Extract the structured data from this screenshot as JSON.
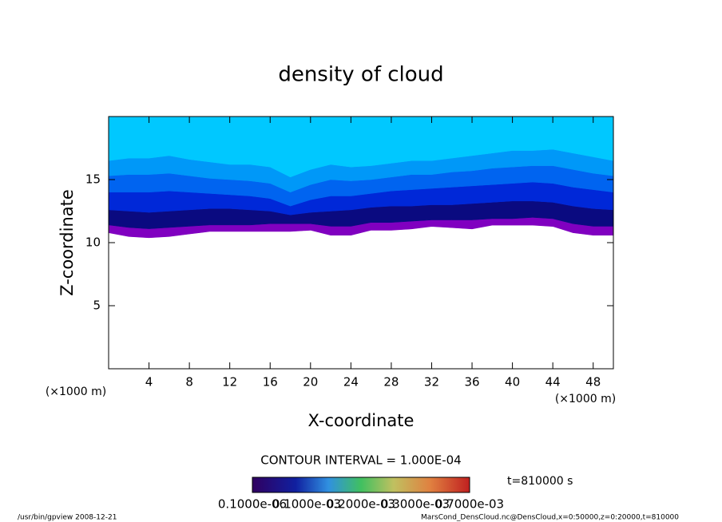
{
  "chart_data": {
    "type": "contour",
    "title": "density of cloud",
    "x_label": "X-coordinate",
    "y_label": "Z-coordinate",
    "x_unit": "(×1000 m)",
    "y_unit": "(×1000 m)",
    "xlim": [
      0,
      50
    ],
    "ylim": [
      0,
      20
    ],
    "xticks": [
      4,
      8,
      12,
      16,
      20,
      24,
      28,
      32,
      36,
      40,
      44,
      48
    ],
    "yticks": [
      5,
      10,
      15
    ],
    "x": [
      0,
      2,
      4,
      6,
      8,
      10,
      12,
      14,
      16,
      18,
      20,
      22,
      24,
      26,
      28,
      30,
      32,
      34,
      36,
      38,
      40,
      42,
      44,
      46,
      48,
      50
    ],
    "base": [
      10.8,
      10.5,
      10.4,
      10.5,
      10.7,
      10.9,
      10.9,
      10.9,
      10.9,
      10.9,
      11.0,
      10.6,
      10.6,
      11.0,
      11.0,
      11.1,
      11.3,
      11.2,
      11.1,
      11.4,
      11.4,
      11.4,
      11.3,
      10.8,
      10.6,
      10.6
    ],
    "bands": [
      {
        "color": "#8000c0",
        "values": [
          11.4,
          11.2,
          11.1,
          11.2,
          11.3,
          11.4,
          11.4,
          11.4,
          11.5,
          11.5,
          11.5,
          11.3,
          11.3,
          11.6,
          11.6,
          11.7,
          11.8,
          11.8,
          11.8,
          11.9,
          11.9,
          12.0,
          11.9,
          11.5,
          11.3,
          11.3
        ]
      },
      {
        "color": "#0a0a80",
        "values": [
          12.6,
          12.5,
          12.4,
          12.5,
          12.6,
          12.7,
          12.7,
          12.6,
          12.5,
          12.2,
          12.4,
          12.5,
          12.6,
          12.8,
          12.9,
          12.9,
          13.0,
          13.0,
          13.1,
          13.2,
          13.3,
          13.3,
          13.2,
          12.9,
          12.7,
          12.6
        ]
      },
      {
        "color": "#0028d8",
        "values": [
          14.0,
          14.0,
          14.0,
          14.1,
          14.0,
          13.9,
          13.8,
          13.7,
          13.5,
          12.9,
          13.4,
          13.7,
          13.7,
          13.9,
          14.1,
          14.2,
          14.3,
          14.4,
          14.5,
          14.6,
          14.7,
          14.8,
          14.7,
          14.4,
          14.2,
          14.0
        ]
      },
      {
        "color": "#0064f0",
        "values": [
          15.3,
          15.4,
          15.4,
          15.5,
          15.3,
          15.1,
          15.0,
          14.9,
          14.7,
          14.0,
          14.6,
          15.0,
          14.9,
          15.0,
          15.2,
          15.4,
          15.4,
          15.6,
          15.7,
          15.9,
          16.0,
          16.1,
          16.1,
          15.8,
          15.5,
          15.3
        ]
      },
      {
        "color": "#0098f8",
        "values": [
          16.5,
          16.7,
          16.7,
          16.9,
          16.6,
          16.4,
          16.2,
          16.2,
          16.0,
          15.2,
          15.8,
          16.2,
          16.0,
          16.1,
          16.3,
          16.5,
          16.5,
          16.7,
          16.9,
          17.1,
          17.3,
          17.3,
          17.4,
          17.1,
          16.8,
          16.5
        ]
      },
      {
        "color": "#00c8ff",
        "values": [
          20,
          20,
          20,
          20,
          20,
          20,
          20,
          20,
          20,
          20,
          20,
          20,
          20,
          20,
          20,
          20,
          20,
          20,
          20,
          20,
          20,
          20,
          20,
          20,
          20,
          20
        ]
      }
    ],
    "contour_interval": "CONTOUR INTERVAL = 1.000E-04",
    "time_label": "t=810000 s",
    "colorbar_labels": [
      "0.1000e-06",
      "0.1000e-03",
      "0.2000e-03",
      "0.3000e-03",
      "0.7000e-03"
    ],
    "footer_left": "/usr/bin/gpview   2008-12-21",
    "footer_right": "MarsCond_DensCloud.nc@DensCloud,x=0:50000,z=0:20000,t=810000"
  }
}
